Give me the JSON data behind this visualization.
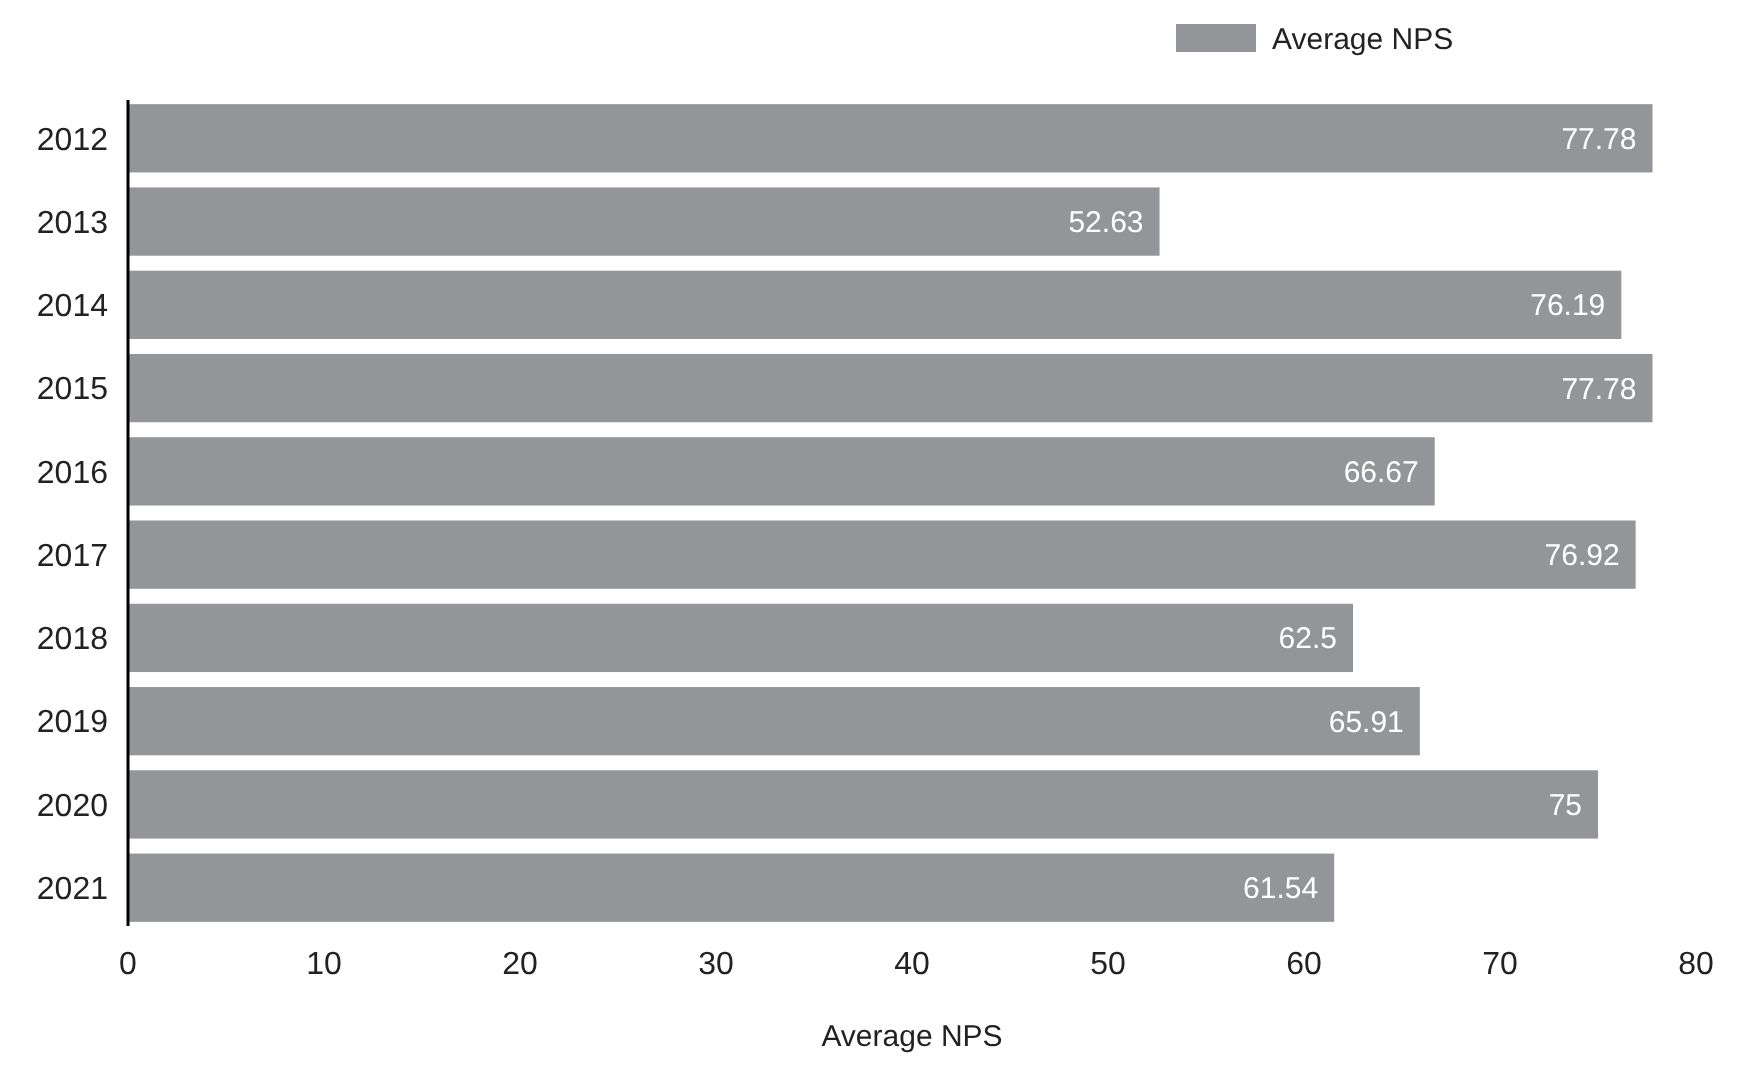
{
  "chart_data": {
    "type": "bar",
    "orientation": "horizontal",
    "xlabel": "Average NPS",
    "categories": [
      "2012",
      "2013",
      "2014",
      "2015",
      "2016",
      "2017",
      "2018",
      "2019",
      "2020",
      "2021"
    ],
    "series": [
      {
        "name": "Average NPS",
        "color": "#939598",
        "values": [
          77.78,
          52.63,
          76.19,
          77.78,
          66.67,
          76.92,
          62.5,
          65.91,
          75,
          61.54
        ]
      }
    ],
    "xlim": [
      0,
      80
    ],
    "xticks": [
      0,
      10,
      20,
      30,
      40,
      50,
      60,
      70,
      80
    ],
    "data_labels": true,
    "legend": "top right",
    "grid": false
  }
}
